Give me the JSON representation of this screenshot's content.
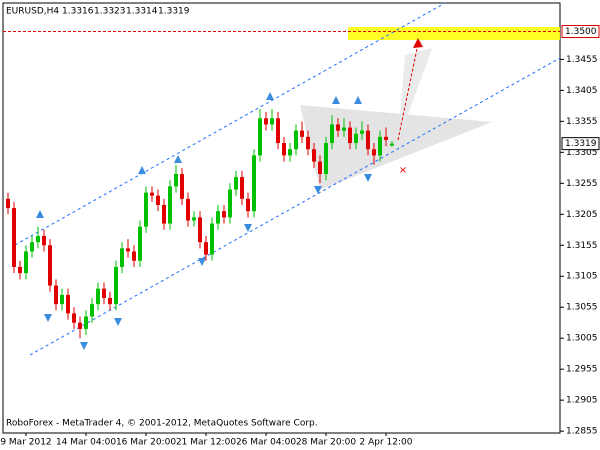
{
  "chart_data": {
    "type": "candlestick",
    "symbol": "EURUSD,H4",
    "footer": "RoboForex - MetaTrader 4, © 2001-2012, MetaQuotes Software Corp.",
    "categories": [
      null,
      null,
      null,
      "9 Mar 2012",
      null,
      null,
      null,
      null,
      null,
      null,
      null,
      null,
      null,
      "14 Mar 04:00",
      null,
      null,
      null,
      null,
      null,
      null,
      null,
      null,
      null,
      "16 Mar 20:00",
      null,
      null,
      null,
      null,
      null,
      null,
      null,
      null,
      null,
      "21 Mar 12:00",
      null,
      null,
      null,
      null,
      null,
      null,
      null,
      null,
      null,
      "26 Mar 04:00",
      null,
      null,
      null,
      null,
      null,
      null,
      null,
      null,
      null,
      "28 Mar 20:00",
      null,
      null,
      null,
      null,
      null,
      null,
      null,
      null,
      null,
      "2 Apr 12:00",
      null
    ],
    "open": [
      1.323,
      1.3215,
      1.312,
      1.311,
      1.3145,
      1.316,
      1.317,
      1.3155,
      1.309,
      1.306,
      1.3075,
      1.3045,
      1.303,
      1.302,
      1.304,
      1.306,
      1.3085,
      1.307,
      1.306,
      1.312,
      1.315,
      1.3145,
      1.313,
      1.3185,
      1.324,
      1.3235,
      1.322,
      1.319,
      1.325,
      1.327,
      1.323,
      1.3195,
      1.32,
      1.316,
      1.314,
      1.319,
      1.321,
      1.32,
      1.3245,
      1.3265,
      1.323,
      1.321,
      1.33,
      1.336,
      1.335,
      1.336,
      1.332,
      1.33,
      1.331,
      1.334,
      1.333,
      1.331,
      1.329,
      1.327,
      1.332,
      1.335,
      1.334,
      1.3345,
      1.332,
      1.3335,
      1.334,
      1.331,
      1.33,
      1.333,
      1.3316
    ],
    "high": [
      1.324,
      1.3225,
      1.313,
      1.3155,
      1.317,
      1.3185,
      1.318,
      1.3165,
      1.31,
      1.3085,
      1.3085,
      1.3055,
      1.304,
      1.305,
      1.307,
      1.3095,
      1.3095,
      1.308,
      1.313,
      1.316,
      1.3165,
      1.3155,
      1.3195,
      1.325,
      1.325,
      1.3245,
      1.323,
      1.326,
      1.3285,
      1.328,
      1.324,
      1.321,
      1.321,
      1.317,
      1.32,
      1.322,
      1.322,
      1.3255,
      1.3275,
      1.3275,
      1.324,
      1.331,
      1.3375,
      1.337,
      1.3375,
      1.337,
      1.333,
      1.332,
      1.335,
      1.3355,
      1.334,
      1.332,
      1.33,
      1.333,
      1.3365,
      1.336,
      1.336,
      1.3355,
      1.3345,
      1.3355,
      1.335,
      1.332,
      1.334,
      1.3345,
      1.3323
    ],
    "low": [
      1.3205,
      1.311,
      1.31,
      1.31,
      1.3135,
      1.315,
      1.3145,
      1.308,
      1.305,
      1.305,
      1.3035,
      1.302,
      1.3005,
      1.301,
      1.303,
      1.305,
      1.306,
      1.305,
      1.305,
      1.311,
      1.3135,
      1.312,
      1.312,
      1.3175,
      1.3225,
      1.321,
      1.318,
      1.318,
      1.324,
      1.322,
      1.3185,
      1.3185,
      1.315,
      1.313,
      1.313,
      1.318,
      1.319,
      1.319,
      1.3235,
      1.322,
      1.32,
      1.32,
      1.329,
      1.334,
      1.334,
      1.331,
      1.329,
      1.329,
      1.33,
      1.332,
      1.33,
      1.328,
      1.3255,
      1.326,
      1.331,
      1.333,
      1.333,
      1.331,
      1.331,
      1.3325,
      1.33,
      1.3285,
      1.329,
      1.3315,
      1.3314
    ],
    "close": [
      1.3215,
      1.312,
      1.311,
      1.3145,
      1.316,
      1.317,
      1.3155,
      1.309,
      1.306,
      1.3075,
      1.3045,
      1.303,
      1.302,
      1.304,
      1.306,
      1.3085,
      1.307,
      1.306,
      1.312,
      1.315,
      1.3145,
      1.313,
      1.3185,
      1.324,
      1.3235,
      1.322,
      1.319,
      1.325,
      1.327,
      1.323,
      1.3195,
      1.32,
      1.316,
      1.314,
      1.319,
      1.321,
      1.32,
      1.3245,
      1.3265,
      1.323,
      1.321,
      1.33,
      1.336,
      1.335,
      1.336,
      1.332,
      1.33,
      1.331,
      1.334,
      1.333,
      1.331,
      1.329,
      1.327,
      1.332,
      1.335,
      1.334,
      1.3345,
      1.332,
      1.3335,
      1.334,
      1.331,
      1.33,
      1.333,
      1.3325,
      1.3319
    ],
    "up_color": "#00c000",
    "down_color": "#e00000",
    "ylim": [
      1.2852,
      1.3546
    ],
    "yticks": [
      1.2855,
      1.2905,
      1.2955,
      1.3005,
      1.3055,
      1.3105,
      1.3155,
      1.3205,
      1.3255,
      1.3305,
      1.3355,
      1.3405,
      1.3455
    ],
    "target": {
      "value": 1.35,
      "label": "1.3500"
    }
  }
}
